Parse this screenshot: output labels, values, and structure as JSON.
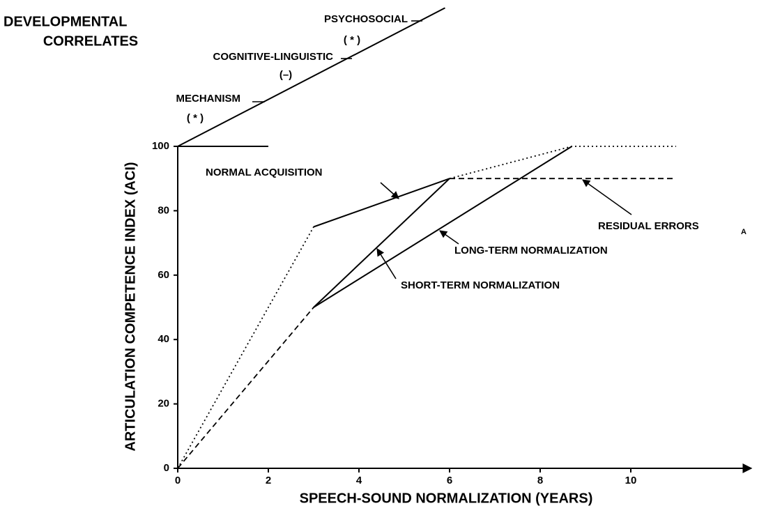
{
  "chart_data": {
    "type": "line",
    "title_lines": [
      "DEVELOPMENTAL",
      "CORRELATES"
    ],
    "y_label": "ARTICULATION COMPETENCE INDEX (ACI)",
    "x_label": "SPEECH-SOUND NORMALIZATION (YEARS)",
    "xlim": [
      0,
      12.8
    ],
    "ylim": [
      0,
      100
    ],
    "xticks": [
      0,
      2,
      4,
      6,
      8,
      10
    ],
    "yticks": [
      0,
      20,
      40,
      60,
      80,
      100
    ],
    "color": "#000000",
    "series": [
      {
        "x": [
          0,
          3
        ],
        "values": [
          0,
          75
        ],
        "style": "dotted"
      },
      {
        "x": [
          3,
          6
        ],
        "values": [
          75,
          90
        ],
        "style": "solid"
      },
      {
        "x": [
          6,
          8.7,
          11
        ],
        "values": [
          90,
          100,
          100
        ],
        "style": "dotted"
      },
      {
        "x": [
          0,
          3
        ],
        "values": [
          0,
          50
        ],
        "style": "dashed"
      },
      {
        "x": [
          3,
          6
        ],
        "values": [
          50,
          90
        ],
        "style": "solid"
      },
      {
        "x": [
          3,
          8.7
        ],
        "values": [
          50,
          100
        ],
        "style": "solid"
      },
      {
        "x": [
          6,
          11
        ],
        "values": [
          90,
          90
        ],
        "style": "dashed"
      },
      {
        "x": [
          0,
          5.9
        ],
        "values": [
          100,
          143
        ],
        "style": "solid"
      },
      {
        "x": [
          0,
          2
        ],
        "values": [
          100,
          100
        ],
        "style": "solid"
      }
    ],
    "annotations": {
      "psychosocial": "PSYCHOSOCIAL",
      "psychosocial_sign": "( * )",
      "cognitive": "COGNITIVE-LINGUISTIC",
      "cognitive_sign": "(–)",
      "mechanism": "MECHANISM",
      "mechanism_sign": "( * )",
      "normal": "NORMAL ACQUISITION",
      "residual": "RESIDUAL ERRORS",
      "residual_sub": "A",
      "long_term": "LONG-TERM NORMALIZATION",
      "short_term": "SHORT-TERM NORMALIZATION"
    }
  }
}
